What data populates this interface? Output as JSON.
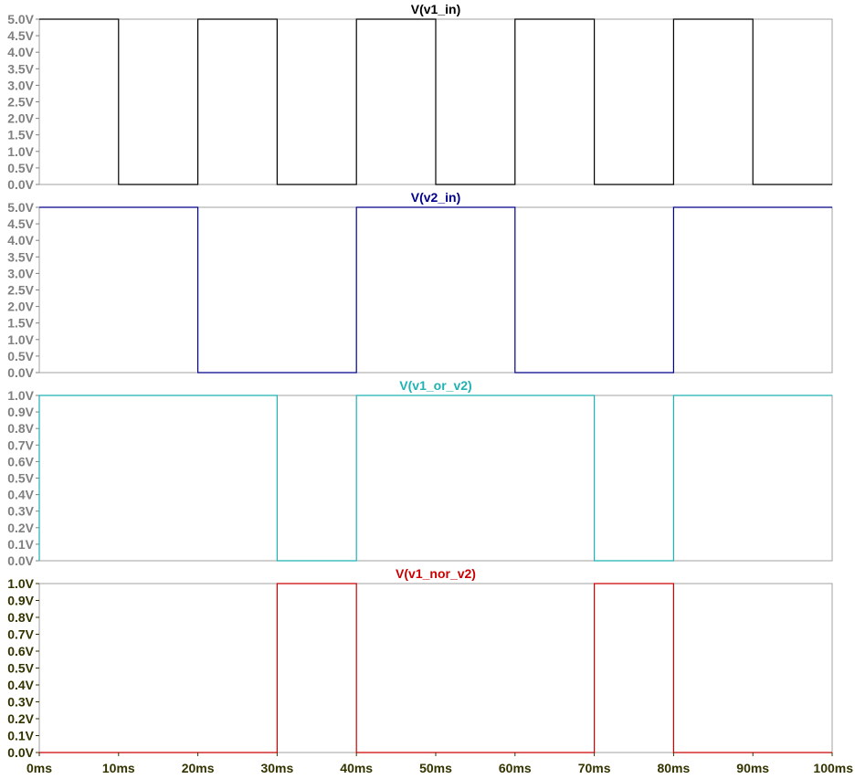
{
  "chart_data": [
    {
      "type": "line",
      "title": "V(v1_in)",
      "color": "#000000",
      "ylim": [
        0,
        5
      ],
      "yticks": [
        "0.0V",
        "0.5V",
        "1.0V",
        "1.5V",
        "2.0V",
        "2.5V",
        "3.0V",
        "3.5V",
        "4.0V",
        "4.5V",
        "5.0V"
      ],
      "y_tick_values": [
        0,
        0.5,
        1,
        1.5,
        2,
        2.5,
        3,
        3.5,
        4,
        4.5,
        5
      ],
      "y_tick_color": "#808080",
      "x": [
        0,
        10,
        10,
        20,
        20,
        30,
        30,
        40,
        40,
        50,
        50,
        60,
        60,
        70,
        70,
        80,
        80,
        90,
        90,
        100
      ],
      "y": [
        5,
        5,
        0,
        0,
        5,
        5,
        0,
        0,
        5,
        5,
        0,
        0,
        5,
        5,
        0,
        0,
        5,
        5,
        0,
        0
      ]
    },
    {
      "type": "line",
      "title": "V(v2_in)",
      "color": "#00008b",
      "ylim": [
        0,
        5
      ],
      "yticks": [
        "0.0V",
        "0.5V",
        "1.0V",
        "1.5V",
        "2.0V",
        "2.5V",
        "3.0V",
        "3.5V",
        "4.0V",
        "4.5V",
        "5.0V"
      ],
      "y_tick_values": [
        0,
        0.5,
        1,
        1.5,
        2,
        2.5,
        3,
        3.5,
        4,
        4.5,
        5
      ],
      "y_tick_color": "#808080",
      "x": [
        0,
        20,
        20,
        40,
        40,
        60,
        60,
        80,
        80,
        100
      ],
      "y": [
        5,
        5,
        0,
        0,
        5,
        5,
        0,
        0,
        5,
        5
      ]
    },
    {
      "type": "line",
      "title": "V(v1_or_v2)",
      "color": "#1fb2b2",
      "ylim": [
        0,
        1
      ],
      "yticks": [
        "0.0V",
        "0.1V",
        "0.2V",
        "0.3V",
        "0.4V",
        "0.5V",
        "0.6V",
        "0.7V",
        "0.8V",
        "0.9V",
        "1.0V"
      ],
      "y_tick_values": [
        0,
        0.1,
        0.2,
        0.3,
        0.4,
        0.5,
        0.6,
        0.7,
        0.8,
        0.9,
        1
      ],
      "y_tick_color": "#808080",
      "x": [
        0,
        0,
        30,
        30,
        40,
        40,
        70,
        70,
        80,
        80,
        100
      ],
      "y": [
        0,
        1,
        1,
        0,
        0,
        1,
        1,
        0,
        0,
        1,
        1
      ]
    },
    {
      "type": "line",
      "title": "V(v1_nor_v2)",
      "color": "#cc0000",
      "ylim": [
        0,
        1
      ],
      "yticks": [
        "0.0V",
        "0.1V",
        "0.2V",
        "0.3V",
        "0.4V",
        "0.5V",
        "0.6V",
        "0.7V",
        "0.8V",
        "0.9V",
        "1.0V"
      ],
      "y_tick_values": [
        0,
        0.1,
        0.2,
        0.3,
        0.4,
        0.5,
        0.6,
        0.7,
        0.8,
        0.9,
        1
      ],
      "y_tick_color": "#333300",
      "x": [
        0,
        30,
        30,
        40,
        40,
        70,
        70,
        80,
        80,
        100
      ],
      "y": [
        0,
        0,
        1,
        1,
        0,
        0,
        1,
        1,
        0,
        0
      ],
      "xticks": [
        "0ms",
        "10ms",
        "20ms",
        "30ms",
        "40ms",
        "50ms",
        "60ms",
        "70ms",
        "80ms",
        "90ms",
        "100ms"
      ],
      "x_tick_values": [
        0,
        10,
        20,
        30,
        40,
        50,
        60,
        70,
        80,
        90,
        100
      ],
      "x_tick_color": "#333300"
    }
  ],
  "xlim": [
    0,
    100
  ],
  "grid": false,
  "frame_color": "#a0a0a0"
}
